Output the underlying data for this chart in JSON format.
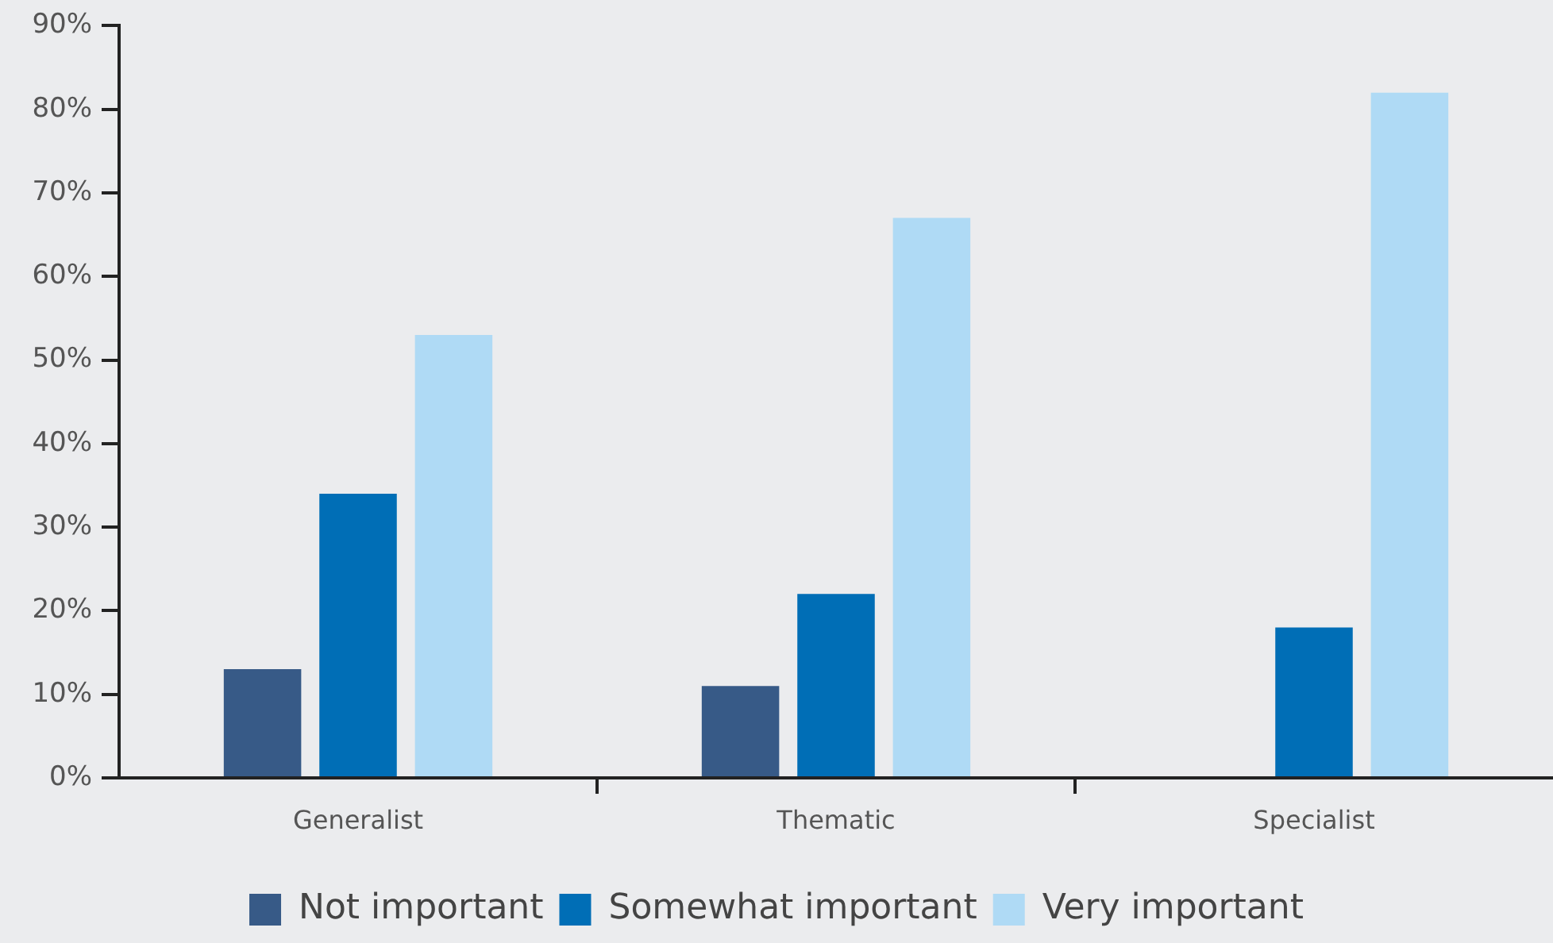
{
  "chart_data": {
    "type": "bar",
    "categories": [
      "Generalist",
      "Thematic",
      "Specialist"
    ],
    "series": [
      {
        "name": "Not important",
        "color": "#375a87",
        "values": [
          13,
          11,
          null
        ]
      },
      {
        "name": "Somewhat important",
        "color": "#006eb6",
        "values": [
          34,
          22,
          18
        ]
      },
      {
        "name": "Very important",
        "color": "#afdaf5",
        "values": [
          53,
          67,
          82
        ]
      }
    ],
    "ylim": [
      0,
      90
    ],
    "yticks": [
      {
        "value": 0,
        "label": "0%"
      },
      {
        "value": 10,
        "label": "10%"
      },
      {
        "value": 20,
        "label": "20%"
      },
      {
        "value": 30,
        "label": "30%"
      },
      {
        "value": 40,
        "label": "40%"
      },
      {
        "value": 50,
        "label": "50%"
      },
      {
        "value": 60,
        "label": "60%"
      },
      {
        "value": 70,
        "label": "70%"
      },
      {
        "value": 80,
        "label": "80%"
      },
      {
        "value": 90,
        "label": "90%"
      }
    ],
    "legend": "bottom"
  }
}
